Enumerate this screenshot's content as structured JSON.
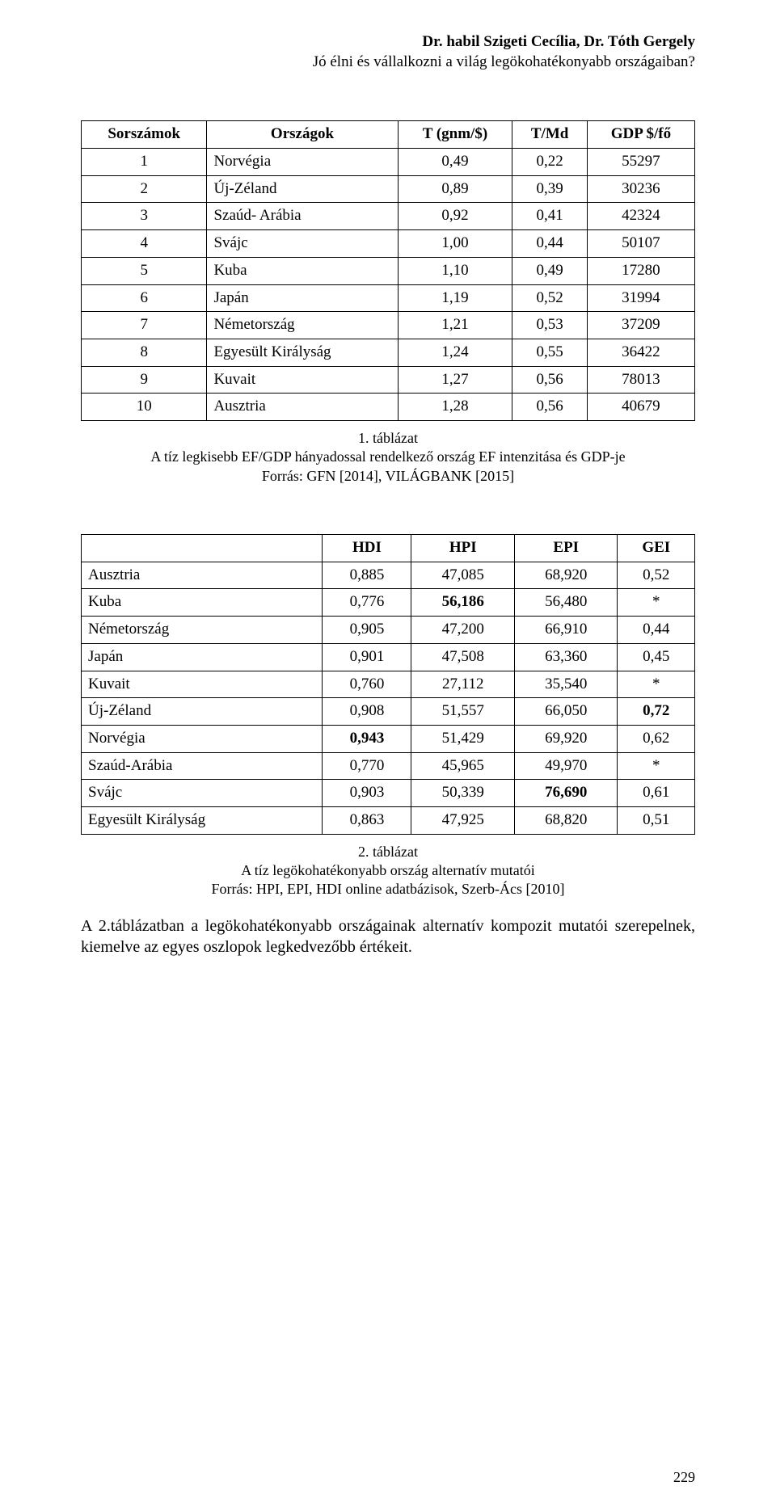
{
  "header": {
    "authors": "Dr. habil Szigeti Cecília, Dr. Tóth Gergely",
    "subtitle": "Jó élni és vállalkozni a világ legökohatékonyabb országaiban?"
  },
  "table1": {
    "columns": [
      "Sorszámok",
      "Országok",
      "T (gnm/$)",
      "T/Md",
      "GDP $/fő"
    ],
    "rows": [
      [
        "1",
        "Norvégia",
        "0,49",
        "0,22",
        "55297"
      ],
      [
        "2",
        "Új-Zéland",
        "0,89",
        "0,39",
        "30236"
      ],
      [
        "3",
        "Szaúd- Arábia",
        "0,92",
        "0,41",
        "42324"
      ],
      [
        "4",
        "Svájc",
        "1,00",
        "0,44",
        "50107"
      ],
      [
        "5",
        "Kuba",
        "1,10",
        "0,49",
        "17280"
      ],
      [
        "6",
        "Japán",
        "1,19",
        "0,52",
        "31994"
      ],
      [
        "7",
        "Németország",
        "1,21",
        "0,53",
        "37209"
      ],
      [
        "8",
        "Egyesült Királyság",
        "1,24",
        "0,55",
        "36422"
      ],
      [
        "9",
        "Kuvait",
        "1,27",
        "0,56",
        "78013"
      ],
      [
        "10",
        "Ausztria",
        "1,28",
        "0,56",
        "40679"
      ]
    ]
  },
  "caption1": {
    "label": "1. táblázat",
    "line1": "A tíz legkisebb  EF/GDP  hányadossal rendelkező ország EF intenzitása és GDP-je",
    "line2": "Forrás: GFN [2014], VILÁGBANK [2015]"
  },
  "table2": {
    "columns": [
      "",
      "HDI",
      "HPI",
      "EPI",
      "GEI"
    ],
    "rows": [
      {
        "label": "Ausztria",
        "vals": [
          "0,885",
          "47,085",
          "68,920",
          "0,52"
        ],
        "bold": [
          false,
          false,
          false,
          false
        ]
      },
      {
        "label": "Kuba",
        "vals": [
          "0,776",
          "56,186",
          "56,480",
          "*"
        ],
        "bold": [
          false,
          true,
          false,
          false
        ]
      },
      {
        "label": "Németország",
        "vals": [
          "0,905",
          "47,200",
          "66,910",
          "0,44"
        ],
        "bold": [
          false,
          false,
          false,
          false
        ]
      },
      {
        "label": "Japán",
        "vals": [
          "0,901",
          "47,508",
          "63,360",
          "0,45"
        ],
        "bold": [
          false,
          false,
          false,
          false
        ]
      },
      {
        "label": "Kuvait",
        "vals": [
          "0,760",
          "27,112",
          "35,540",
          "*"
        ],
        "bold": [
          false,
          false,
          false,
          false
        ]
      },
      {
        "label": "Új-Zéland",
        "vals": [
          "0,908",
          "51,557",
          "66,050",
          "0,72"
        ],
        "bold": [
          false,
          false,
          false,
          true
        ]
      },
      {
        "label": "Norvégia",
        "vals": [
          "0,943",
          "51,429",
          "69,920",
          "0,62"
        ],
        "bold": [
          true,
          false,
          false,
          false
        ]
      },
      {
        "label": "Szaúd-Arábia",
        "vals": [
          "0,770",
          "45,965",
          "49,970",
          "*"
        ],
        "bold": [
          false,
          false,
          false,
          false
        ]
      },
      {
        "label": "Svájc",
        "vals": [
          "0,903",
          "50,339",
          "76,690",
          "0,61"
        ],
        "bold": [
          false,
          false,
          true,
          false
        ]
      },
      {
        "label": "Egyesült Királyság",
        "vals": [
          "0,863",
          "47,925",
          "68,820",
          "0,51"
        ],
        "bold": [
          false,
          false,
          false,
          false
        ]
      }
    ]
  },
  "caption2": {
    "label": "2. táblázat",
    "line1": "A tíz legökohatékonyabb ország alternatív mutatói",
    "line2": "Forrás: HPI, EPI, HDI online adatbázisok, Szerb-Ács  [2010]"
  },
  "body_paragraph": "A 2.táblázatban a legökohatékonyabb országainak alternatív kompozit  mutatói szerepelnek, kiemelve az egyes oszlopok legkedvezőbb értékeit.",
  "page_number": "229"
}
